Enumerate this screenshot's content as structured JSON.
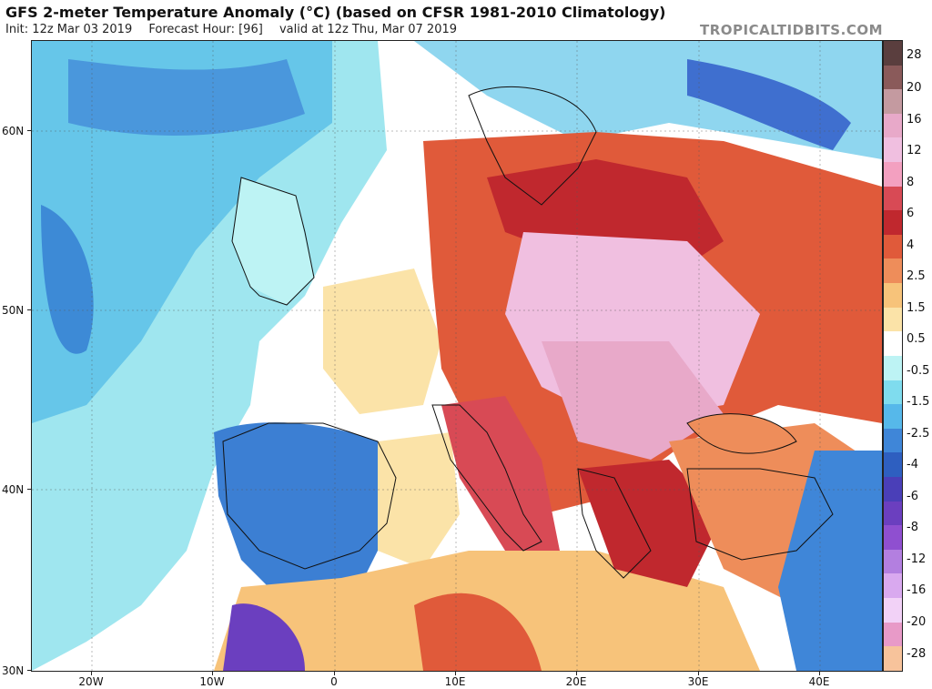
{
  "header": {
    "title": "GFS 2-meter Temperature Anomaly (°C) (based on CFSR 1981-2010 Climatology)",
    "init": "Init: 12z Mar 03 2019",
    "forecast_hour": "Forecast Hour: [96]",
    "valid": "valid at 12z Thu, Mar 07 2019",
    "source": "TROPICALTIDBITS.COM"
  },
  "map": {
    "lat_labels": [
      "60N",
      "50N",
      "40N",
      "30N"
    ],
    "lon_labels": [
      "20W",
      "10W",
      "0",
      "10E",
      "20E",
      "30E",
      "40E"
    ]
  },
  "legend": {
    "labels": [
      "28",
      "20",
      "16",
      "12",
      "8",
      "6",
      "4",
      "2.5",
      "1.5",
      "0.5",
      "-0.5",
      "-1.5",
      "-2.5",
      "-4",
      "-6",
      "-8",
      "-12",
      "-16",
      "-20",
      "-28"
    ],
    "colors": [
      "#5a3e3e",
      "#8a5a5a",
      "#c49aa0",
      "#e8a9c9",
      "#f0bfe0",
      "#f3a0c0",
      "#d84a55",
      "#c0282e",
      "#e05a3a",
      "#ee8d5a",
      "#f7c37a",
      "#fbe3a8",
      "#ffffff",
      "#bdf3f4",
      "#7fdcee",
      "#56b8ea",
      "#3f86d8",
      "#2e5fc0",
      "#4a3fb8",
      "#6b3fbf",
      "#8f4fd0",
      "#b37fe0",
      "#d9a9ef",
      "#f2d2f7",
      "#e89ac8",
      "#f7c39b"
    ]
  }
}
